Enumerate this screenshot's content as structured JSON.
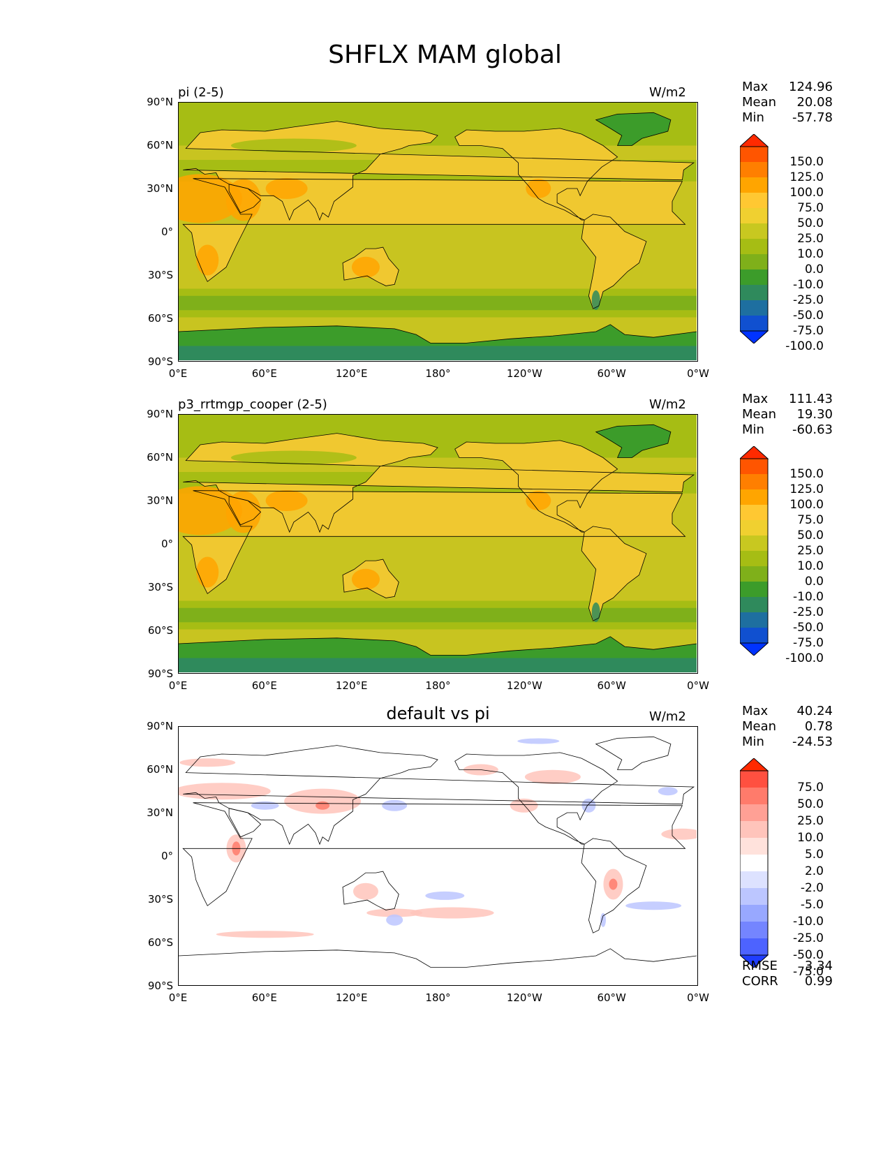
{
  "title": "SHFLX MAM global",
  "axes": {
    "lat_ticks": [
      "90°N",
      "60°N",
      "30°N",
      "0°",
      "30°S",
      "60°S",
      "90°S"
    ],
    "lon_ticks": [
      "0°E",
      "60°E",
      "120°E",
      "180°",
      "120°W",
      "60°W",
      "0°W"
    ]
  },
  "panels": [
    {
      "title_left": "pi (2-5)",
      "title_center": "",
      "units": "W/m2",
      "stats": {
        "max_label": "Max",
        "max": "124.96",
        "mean_label": "Mean",
        "mean": "20.08",
        "min_label": "Min",
        "min": "-57.78"
      },
      "colorbar": {
        "labels": [
          "150.0",
          "125.0",
          "100.0",
          "75.0",
          "50.0",
          "25.0",
          "10.0",
          "0.0",
          "-10.0",
          "-25.0",
          "-50.0",
          "-75.0",
          "-100.0"
        ],
        "colors": [
          "#ff2a00",
          "#ff5500",
          "#ff7f00",
          "#ffa500",
          "#ffc832",
          "#f0d030",
          "#c8c820",
          "#a6bd14",
          "#7fb01a",
          "#3c9c2a",
          "#2f8a5c",
          "#1e6fa0",
          "#1050d0",
          "#0033ff"
        ]
      }
    },
    {
      "title_left": "p3_rrtmgp_cooper (2-5)",
      "title_center": "",
      "units": "W/m2",
      "stats": {
        "max_label": "Max",
        "max": "111.43",
        "mean_label": "Mean",
        "mean": "19.30",
        "min_label": "Min",
        "min": "-60.63"
      },
      "colorbar": {
        "labels": [
          "150.0",
          "125.0",
          "100.0",
          "75.0",
          "50.0",
          "25.0",
          "10.0",
          "0.0",
          "-10.0",
          "-25.0",
          "-50.0",
          "-75.0",
          "-100.0"
        ],
        "colors": [
          "#ff2a00",
          "#ff5500",
          "#ff7f00",
          "#ffa500",
          "#ffc832",
          "#f0d030",
          "#c8c820",
          "#a6bd14",
          "#7fb01a",
          "#3c9c2a",
          "#2f8a5c",
          "#1e6fa0",
          "#1050d0",
          "#0033ff"
        ]
      }
    },
    {
      "title_left": "",
      "title_center": "default vs pi",
      "units": "W/m2",
      "stats": {
        "max_label": "Max",
        "max": "40.24",
        "mean_label": "Mean",
        "mean": "0.78",
        "min_label": "Min",
        "min": "-24.53"
      },
      "colorbar": {
        "labels": [
          "75.0",
          "50.0",
          "25.0",
          "10.0",
          "5.0",
          "2.0",
          "-2.0",
          "-5.0",
          "-10.0",
          "-25.0",
          "-50.0",
          "-75.0"
        ],
        "colors": [
          "#ff2a00",
          "#ff5040",
          "#ff7b6b",
          "#ffa095",
          "#ffc4bb",
          "#ffe2dc",
          "#ffffff",
          "#dde2ff",
          "#bcc6ff",
          "#98a8ff",
          "#7485ff",
          "#4d63ff",
          "#1f3dff"
        ]
      },
      "extra": {
        "rmse_label": "RMSE",
        "rmse": "3.34",
        "corr_label": "CORR",
        "corr": "0.99"
      }
    }
  ],
  "map_colors": {
    "ocean_tropics": "#c8c420",
    "ocean_mid": "#a6bd14",
    "ocean_storm": "#7fb01a",
    "land_warm": "#f0c830",
    "land_hot": "#ffa500",
    "antarctic": "#3c9c2a",
    "antarctic_dark": "#2f8a5c",
    "greenland": "#3c9c2a",
    "diff_bg": "#ffffff",
    "diff_pos": "#ffc4bb",
    "diff_pos_strong": "#ff7b6b",
    "diff_neg": "#bcc6ff",
    "coast": "#000000"
  }
}
